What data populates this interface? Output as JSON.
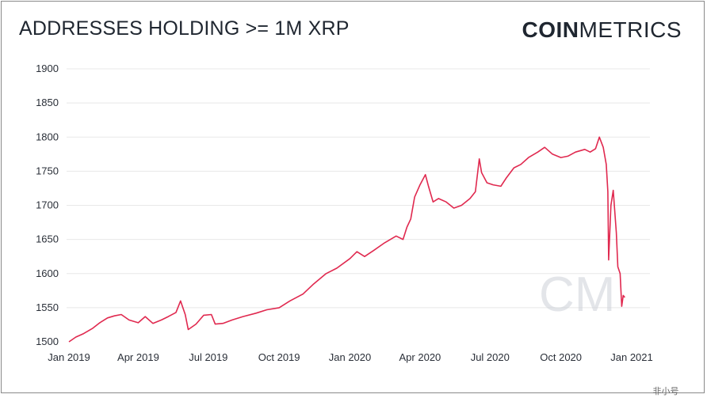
{
  "header": {
    "title": "ADDRESSES HOLDING >= 1M XRP",
    "brand_bold": "COIN",
    "brand_light": "METRICS"
  },
  "watermark": {
    "logo_text": "CM",
    "corner_text": "非小号"
  },
  "colors": {
    "line": "#e0294f",
    "grid": "#e8e8e8",
    "text": "#1f2630",
    "watermark": "#c8ccd3"
  },
  "chart_data": {
    "type": "line",
    "title": "ADDRESSES HOLDING >= 1M XRP",
    "xlabel": "",
    "ylabel": "",
    "ylim": [
      1500,
      1900
    ],
    "yticks": [
      1500,
      1550,
      1600,
      1650,
      1700,
      1750,
      1800,
      1850,
      1900
    ],
    "xlim": [
      "2019-01-01",
      "2021-01-15"
    ],
    "xticks": [
      {
        "date": "2019-01-01",
        "label": "Jan 2019"
      },
      {
        "date": "2019-04-01",
        "label": "Apr 2019"
      },
      {
        "date": "2019-07-01",
        "label": "Jul 2019"
      },
      {
        "date": "2019-10-01",
        "label": "Oct 2019"
      },
      {
        "date": "2020-01-01",
        "label": "Jan 2020"
      },
      {
        "date": "2020-04-01",
        "label": "Apr 2020"
      },
      {
        "date": "2020-07-01",
        "label": "Jul 2020"
      },
      {
        "date": "2020-10-01",
        "label": "Oct 2020"
      },
      {
        "date": "2021-01-01",
        "label": "Jan 2021"
      }
    ],
    "grid": true,
    "series": [
      {
        "points": [
          [
            "2019-01-01",
            1500
          ],
          [
            "2019-01-10",
            1507
          ],
          [
            "2019-01-20",
            1512
          ],
          [
            "2019-02-01",
            1520
          ],
          [
            "2019-02-10",
            1528
          ],
          [
            "2019-02-20",
            1535
          ],
          [
            "2019-03-01",
            1538
          ],
          [
            "2019-03-10",
            1540
          ],
          [
            "2019-03-20",
            1532
          ],
          [
            "2019-04-01",
            1528
          ],
          [
            "2019-04-10",
            1537
          ],
          [
            "2019-04-20",
            1527
          ],
          [
            "2019-05-01",
            1532
          ],
          [
            "2019-05-10",
            1537
          ],
          [
            "2019-05-20",
            1543
          ],
          [
            "2019-05-26",
            1560
          ],
          [
            "2019-06-01",
            1540
          ],
          [
            "2019-06-05",
            1518
          ],
          [
            "2019-06-15",
            1526
          ],
          [
            "2019-06-25",
            1539
          ],
          [
            "2019-07-05",
            1540
          ],
          [
            "2019-07-10",
            1526
          ],
          [
            "2019-07-20",
            1527
          ],
          [
            "2019-08-01",
            1532
          ],
          [
            "2019-08-15",
            1537
          ],
          [
            "2019-09-01",
            1542
          ],
          [
            "2019-09-15",
            1547
          ],
          [
            "2019-10-01",
            1550
          ],
          [
            "2019-10-15",
            1560
          ],
          [
            "2019-11-01",
            1570
          ],
          [
            "2019-11-15",
            1585
          ],
          [
            "2019-12-01",
            1600
          ],
          [
            "2019-12-15",
            1608
          ],
          [
            "2020-01-01",
            1622
          ],
          [
            "2020-01-10",
            1632
          ],
          [
            "2020-01-20",
            1625
          ],
          [
            "2020-02-01",
            1634
          ],
          [
            "2020-02-15",
            1645
          ],
          [
            "2020-03-01",
            1655
          ],
          [
            "2020-03-10",
            1650
          ],
          [
            "2020-03-15",
            1668
          ],
          [
            "2020-03-20",
            1680
          ],
          [
            "2020-03-25",
            1712
          ],
          [
            "2020-04-01",
            1730
          ],
          [
            "2020-04-08",
            1745
          ],
          [
            "2020-04-12",
            1728
          ],
          [
            "2020-04-18",
            1705
          ],
          [
            "2020-04-25",
            1710
          ],
          [
            "2020-05-05",
            1705
          ],
          [
            "2020-05-15",
            1696
          ],
          [
            "2020-05-25",
            1700
          ],
          [
            "2020-06-05",
            1710
          ],
          [
            "2020-06-12",
            1720
          ],
          [
            "2020-06-17",
            1768
          ],
          [
            "2020-06-20",
            1748
          ],
          [
            "2020-06-27",
            1733
          ],
          [
            "2020-07-05",
            1730
          ],
          [
            "2020-07-15",
            1728
          ],
          [
            "2020-07-22",
            1740
          ],
          [
            "2020-08-01",
            1755
          ],
          [
            "2020-08-10",
            1760
          ],
          [
            "2020-08-20",
            1770
          ],
          [
            "2020-09-01",
            1778
          ],
          [
            "2020-09-10",
            1785
          ],
          [
            "2020-09-20",
            1775
          ],
          [
            "2020-10-01",
            1770
          ],
          [
            "2020-10-10",
            1772
          ],
          [
            "2020-10-20",
            1778
          ],
          [
            "2020-11-01",
            1782
          ],
          [
            "2020-11-08",
            1778
          ],
          [
            "2020-11-15",
            1783
          ],
          [
            "2020-11-20",
            1800
          ],
          [
            "2020-11-25",
            1785
          ],
          [
            "2020-11-29",
            1760
          ],
          [
            "2020-12-01",
            1720
          ],
          [
            "2020-12-02",
            1620
          ],
          [
            "2020-12-05",
            1700
          ],
          [
            "2020-12-08",
            1722
          ],
          [
            "2020-12-12",
            1660
          ],
          [
            "2020-12-14",
            1610
          ],
          [
            "2020-12-17",
            1600
          ],
          [
            "2020-12-19",
            1552
          ],
          [
            "2020-12-21",
            1568
          ],
          [
            "2020-12-23",
            1565
          ]
        ]
      }
    ]
  }
}
